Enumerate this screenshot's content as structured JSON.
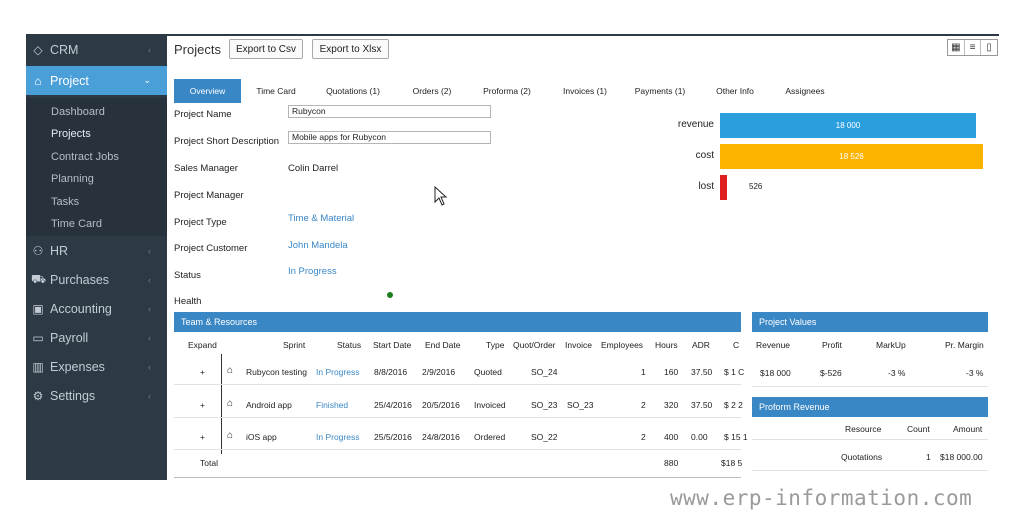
{
  "sidebar": {
    "items": [
      {
        "icon": "diamond-icon",
        "glyph": "◇",
        "label": "CRM"
      },
      {
        "icon": "tag-icon",
        "glyph": "⌂",
        "label": "Project"
      },
      {
        "icon": "people-icon",
        "glyph": "⚇",
        "label": "HR"
      },
      {
        "icon": "cart-icon",
        "glyph": "⛟",
        "label": "Purchases"
      },
      {
        "icon": "briefcase-icon",
        "glyph": "▣",
        "label": "Accounting"
      },
      {
        "icon": "card-icon",
        "glyph": "▭",
        "label": "Payroll"
      },
      {
        "icon": "bar-chart-icon",
        "glyph": "▥",
        "label": "Expenses"
      },
      {
        "icon": "gear-icon",
        "glyph": "⚙",
        "label": "Settings"
      }
    ],
    "sub_items": [
      "Dashboard",
      "Projects",
      "Contract Jobs",
      "Planning",
      "Tasks",
      "Time Card"
    ]
  },
  "header": {
    "title": "Projects",
    "export_csv": "Export to Csv",
    "export_xlsx": "Export to Xlsx"
  },
  "tabs": [
    "Overview",
    "Time Card",
    "Quotations (1)",
    "Orders (2)",
    "Proforma (2)",
    "Invoices (1)",
    "Payments (1)",
    "Other Info",
    "Assignees"
  ],
  "form": {
    "project_name_label": "Project Name",
    "project_name_value": "Rubycon",
    "short_desc_label": "Project Short Description",
    "short_desc_value": "Mobile apps for Rubycon",
    "sales_manager_label": "Sales Manager",
    "sales_manager_value": "Colin Darrel",
    "project_manager_label": "Project Manager",
    "project_type_label": "Project Type",
    "project_type_value": "Time & Material",
    "project_customer_label": "Project Customer",
    "project_customer_value": "John Mandela",
    "status_label": "Status",
    "status_value": "In Progress",
    "health_label": "Health"
  },
  "chart_data": {
    "type": "bar",
    "categories": [
      "revenue",
      "cost",
      "lost"
    ],
    "values": [
      18000,
      18526,
      526
    ],
    "labels": [
      "18 000",
      "18 526",
      "526"
    ],
    "colors": [
      "#2b9ede",
      "#fbb300",
      "#e02020"
    ]
  },
  "team": {
    "title": "Team & Resources",
    "headers": [
      "Expand",
      "Sprint",
      "Status",
      "Start Date",
      "End Date",
      "Type",
      "Quot/Order",
      "Invoice",
      "Employees",
      "Hours",
      "ADR",
      "C"
    ],
    "rows": [
      {
        "expand": "+",
        "sprint": "Rubycon testing",
        "status": "In Progress",
        "start": "8/8/2016",
        "end": "2/9/2016",
        "type": "Quoted",
        "quot": "SO_24",
        "invoice": "",
        "employees": "1",
        "hours": "160",
        "adr": "37.50",
        "c": "$ 1 C"
      },
      {
        "expand": "+",
        "sprint": "Android app",
        "status": "Finished",
        "start": "25/4/2016",
        "end": "20/5/2016",
        "type": "Invoiced",
        "quot": "SO_23",
        "invoice": "SO_23",
        "employees": "2",
        "hours": "320",
        "adr": "37.50",
        "c": "$ 2 2"
      },
      {
        "expand": "+",
        "sprint": "iOS app",
        "status": "In Progress",
        "start": "25/5/2016",
        "end": "24/8/2016",
        "type": "Ordered",
        "quot": "SO_22",
        "invoice": "",
        "employees": "2",
        "hours": "400",
        "adr": "0.00",
        "c": "$ 15 1"
      }
    ],
    "total_label": "Total",
    "total_hours": "880",
    "total_c": "$18 5"
  },
  "project_values": {
    "title": "Project Values",
    "headers": [
      "Revenue",
      "Profit",
      "MarkUp",
      "Pr. Margin"
    ],
    "values": [
      "$18 000",
      "$-526",
      "-3 %",
      "-3 %"
    ]
  },
  "proform_revenue": {
    "title": "Proform Revenue",
    "headers": [
      "Resource",
      "Count",
      "Amount"
    ],
    "row": [
      "Quotations",
      "1",
      "$18 000.00"
    ]
  },
  "watermark": "www.erp-information.com"
}
